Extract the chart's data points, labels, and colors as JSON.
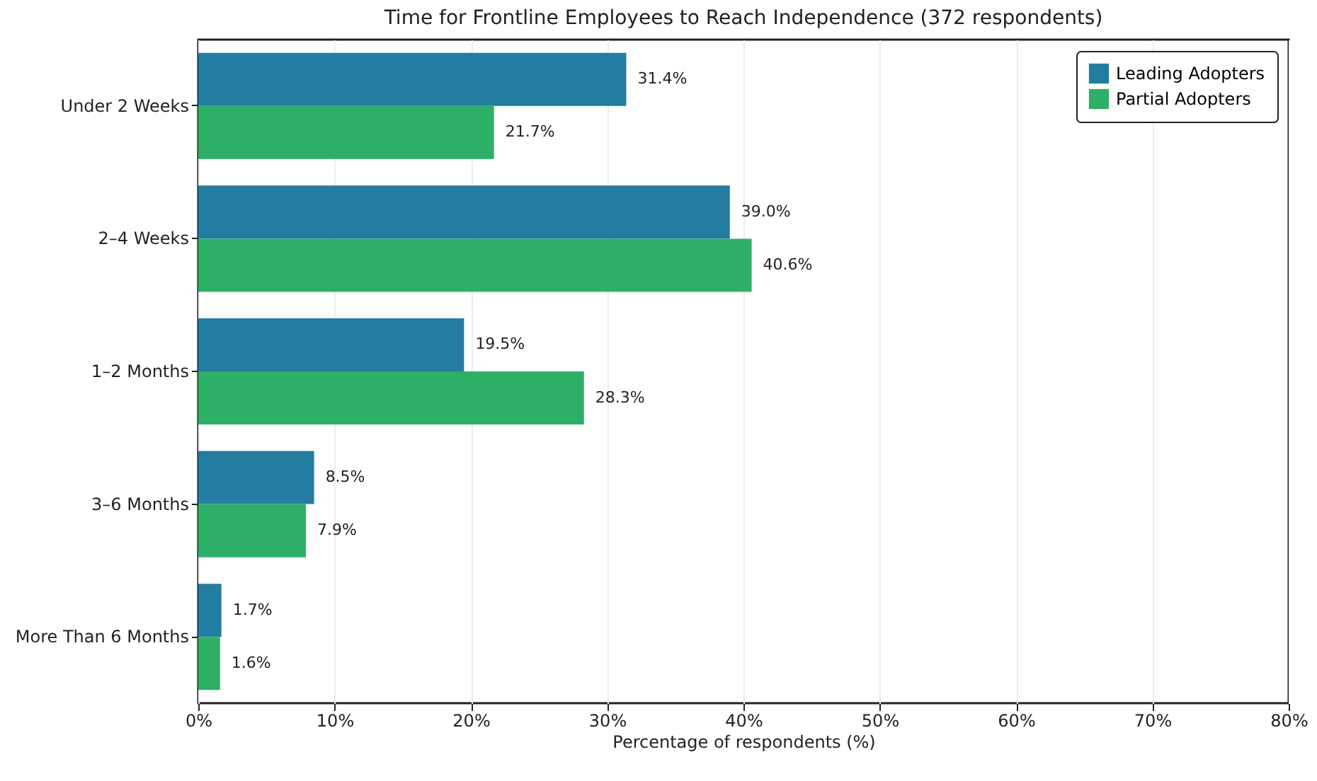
{
  "chart_data": {
    "type": "bar",
    "orientation": "horizontal",
    "title": "Time for Frontline Employees to Reach Independence (372 respondents)",
    "xlabel": "Percentage of respondents (%)",
    "categories": [
      "Under 2 Weeks",
      "2–4 Weeks",
      "1–2 Months",
      "3–6 Months",
      "More Than 6 Months"
    ],
    "series": [
      {
        "name": "Leading Adopters",
        "color": "#237da0",
        "values": [
          31.4,
          39.0,
          19.5,
          8.5,
          1.7
        ],
        "value_labels": [
          "31.4%",
          "39.0%",
          "19.5%",
          "8.5%",
          "1.7%"
        ]
      },
      {
        "name": "Partial Adopters",
        "color": "#2eaf68",
        "values": [
          21.7,
          40.6,
          28.3,
          7.9,
          1.6
        ],
        "value_labels": [
          "21.7%",
          "40.6%",
          "28.3%",
          "7.9%",
          "1.6%"
        ]
      }
    ],
    "xlim": [
      0,
      80
    ],
    "xticks": [
      {
        "value": 0,
        "label": "0%"
      },
      {
        "value": 10,
        "label": "10%"
      },
      {
        "value": 20,
        "label": "20%"
      },
      {
        "value": 30,
        "label": "30%"
      },
      {
        "value": 40,
        "label": "40%"
      },
      {
        "value": 50,
        "label": "50%"
      },
      {
        "value": 60,
        "label": "60%"
      },
      {
        "value": 70,
        "label": "70%"
      },
      {
        "value": 80,
        "label": "80%"
      }
    ],
    "grid": "x",
    "legend": "top right"
  }
}
